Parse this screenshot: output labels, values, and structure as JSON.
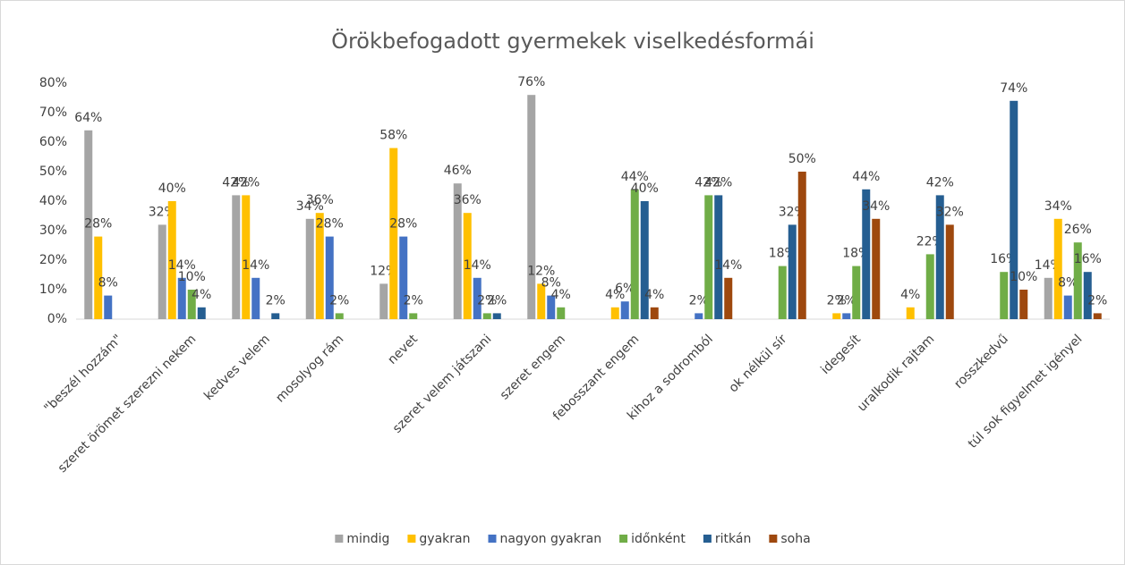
{
  "chart_data": {
    "type": "bar",
    "title": "Örökbefogadott gyermekek viselkedésformái",
    "categories": [
      "\"beszél hozzám\"",
      "szeret örömet szerezni nekem",
      "kedves velem",
      "mosolyog rám",
      "nevet",
      "szeret velem játszani",
      "szeret engem",
      "febosszant engem",
      "kihoz a sodromból",
      "ok nélkül sír",
      "idegesít",
      "uralkodik rajtam",
      "rosszkedvű",
      "túl sok figyelmet igényel"
    ],
    "series": [
      {
        "name": "mindig",
        "color": "#a5a5a5",
        "values": [
          64,
          32,
          42,
          34,
          12,
          46,
          76,
          null,
          null,
          null,
          null,
          null,
          null,
          14
        ],
        "value_labels": [
          "64%",
          "32%",
          "42%",
          "34%",
          "12%",
          "46%",
          "76%",
          null,
          null,
          null,
          null,
          null,
          null,
          "14%"
        ]
      },
      {
        "name": "gyakran",
        "color": "#ffc000",
        "values": [
          28,
          40,
          42,
          36,
          58,
          36,
          12,
          4,
          null,
          null,
          2,
          4,
          null,
          34
        ],
        "value_labels": [
          "28%",
          "40%",
          "42%",
          "36%",
          "58%",
          "36%",
          "12%",
          "4%",
          null,
          null,
          "2%",
          "4%",
          null,
          "34%"
        ]
      },
      {
        "name": "nagyon gyakran",
        "color": "#4472c4",
        "values": [
          8,
          14,
          14,
          28,
          28,
          14,
          8,
          6,
          2,
          null,
          2,
          null,
          null,
          8
        ],
        "value_labels": [
          "8%",
          "14%",
          "14%",
          "28%",
          "28%",
          "14%",
          "8%",
          "6%",
          "2%",
          null,
          "2%",
          null,
          null,
          "8%"
        ]
      },
      {
        "name": "időnként",
        "color": "#70ad47",
        "values": [
          null,
          10,
          null,
          2,
          2,
          2,
          4,
          44,
          42,
          18,
          18,
          22,
          16,
          26
        ],
        "value_labels": [
          null,
          "10%",
          null,
          "2%",
          "2%",
          "2%",
          "4%",
          "44%",
          "42%",
          "18%",
          "18%",
          "22%",
          "16%",
          "26%"
        ]
      },
      {
        "name": "ritkán",
        "color": "#255e91",
        "values": [
          null,
          4,
          2,
          null,
          null,
          2,
          null,
          40,
          42,
          32,
          44,
          42,
          74,
          16
        ],
        "value_labels": [
          null,
          "4%",
          "2%",
          null,
          null,
          "2%",
          null,
          "40%",
          "42%",
          "32%",
          "44%",
          "42%",
          "74%",
          "16%"
        ]
      },
      {
        "name": "soha",
        "color": "#9e480e",
        "values": [
          null,
          null,
          null,
          null,
          null,
          null,
          null,
          4,
          14,
          50,
          34,
          32,
          10,
          2
        ],
        "value_labels": [
          null,
          null,
          null,
          null,
          null,
          null,
          null,
          "4%",
          "14%",
          "50%",
          "34%",
          "32%",
          "10%",
          "2%"
        ]
      }
    ],
    "ylim": [
      0,
      80
    ],
    "yticks": [
      {
        "value": 0,
        "label": "0%"
      },
      {
        "value": 10,
        "label": "10%"
      },
      {
        "value": 20,
        "label": "20%"
      },
      {
        "value": 30,
        "label": "30%"
      },
      {
        "value": 40,
        "label": "40%"
      },
      {
        "value": 50,
        "label": "50%"
      },
      {
        "value": 60,
        "label": "60%"
      },
      {
        "value": 70,
        "label": "70%"
      },
      {
        "value": 80,
        "label": "80%"
      }
    ],
    "legend": "bottom"
  }
}
